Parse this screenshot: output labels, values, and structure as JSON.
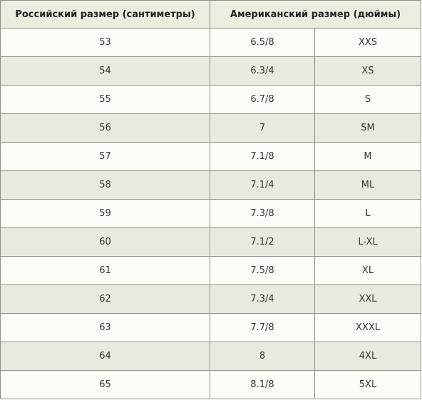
{
  "header": {
    "russian_size": "Российский размер (сантиметры)",
    "american_size": "Американский размер (дюймы)"
  },
  "rows": [
    {
      "cm": "53",
      "inches": "6.5/8",
      "letter": "XXS"
    },
    {
      "cm": "54",
      "inches": "6.3/4",
      "letter": "XS"
    },
    {
      "cm": "55",
      "inches": "6.7/8",
      "letter": "S"
    },
    {
      "cm": "56",
      "inches": "7",
      "letter": "SM"
    },
    {
      "cm": "57",
      "inches": "7.1/8",
      "letter": "M"
    },
    {
      "cm": "58",
      "inches": "7.1/4",
      "letter": "ML"
    },
    {
      "cm": "59",
      "inches": "7.3/8",
      "letter": "L"
    },
    {
      "cm": "60",
      "inches": "7.1/2",
      "letter": "L-XL"
    },
    {
      "cm": "61",
      "inches": "7.5/8",
      "letter": "XL"
    },
    {
      "cm": "62",
      "inches": "7.3/4",
      "letter": "XXL"
    },
    {
      "cm": "63",
      "inches": "7.7/8",
      "letter": "XXXL"
    },
    {
      "cm": "64",
      "inches": "8",
      "letter": "4XL"
    },
    {
      "cm": "65",
      "inches": "8.1/8",
      "letter": "5XL"
    }
  ],
  "colors": {
    "header_bg": "#ecece0",
    "row_light": "#fdfdf7",
    "row_dark": "#e9eadf",
    "border": "#8f8f84"
  }
}
